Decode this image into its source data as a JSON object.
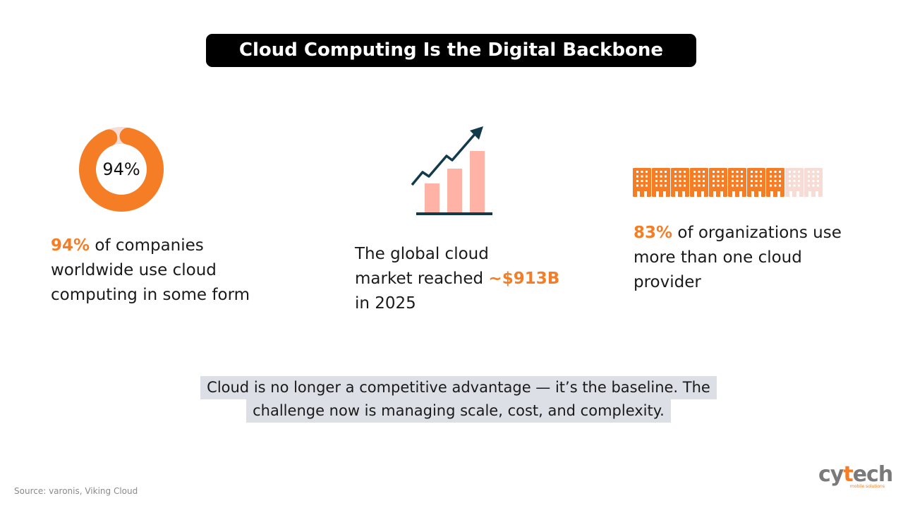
{
  "title": "Cloud Computing Is the Digital Backbone",
  "colors": {
    "accent": "#f47d25",
    "accent_light": "#f6dcd5",
    "bar": "#ffb3a7",
    "arrow": "#123a4a",
    "callout_bg": "#dcdfe6"
  },
  "stats": [
    {
      "icon": "donut-chart-icon",
      "value_percent": 94,
      "icon_label": "94%",
      "highlight": "94%",
      "text_lines": [
        " of companies",
        "worldwide use cloud",
        "computing in some form"
      ]
    },
    {
      "icon": "growth-chart-icon",
      "line1": "The global cloud",
      "line2_prefix": "market reached ",
      "highlight": "~$913B",
      "line3": "in 2025"
    },
    {
      "icon": "buildings-icon",
      "value_percent": 83,
      "filled_count": 8,
      "total_count": 10,
      "highlight": "83%",
      "text_lines": [
        " of organizations use",
        "more than one cloud",
        "provider"
      ]
    }
  ],
  "callout": {
    "line1": "Cloud is no longer a competitive advantage — it’s the baseline. The",
    "line2": "challenge now is managing scale, cost, and complexity."
  },
  "source": "Source: varonis, Viking Cloud",
  "logo": {
    "text_left": "cy",
    "text_accent": "t",
    "text_right": "ech",
    "tagline": "mobile solutions"
  }
}
